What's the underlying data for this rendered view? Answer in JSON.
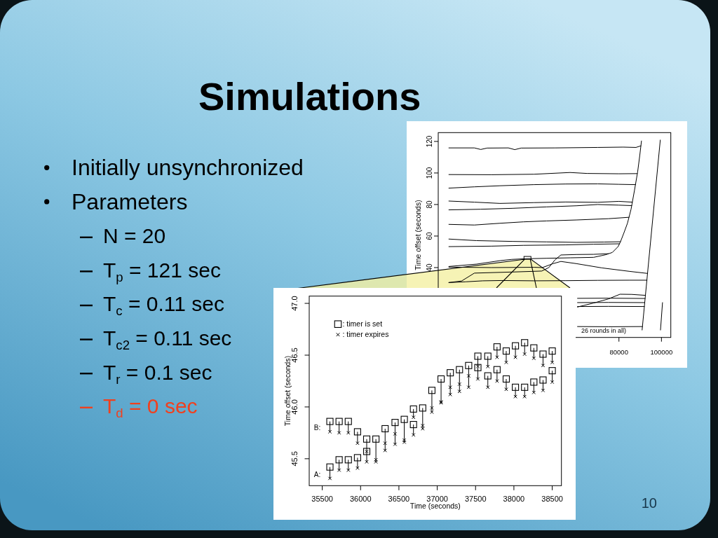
{
  "chart_data": [
    {
      "type": "other",
      "title": "Simulations",
      "annotations": [
        "Initially unsynchronized",
        "Parameters",
        "N = 20",
        "T$_{p}$ = 121 sec",
        "T$_{c}$ = 0.11 sec",
        "T$_{c2}$ = 0.11 sec",
        "T$_{r}$ = 0.1 sec",
        "T$_{d}$ = 0 sec",
        "10"
      ],
      "colors": [
        "#000000",
        "#000000",
        "#000000",
        "#000000",
        "#000000",
        "#000000",
        "#000000",
        "#f0401e",
        "#17364a"
      ]
    },
    {
      "type": "line",
      "ylabel": "Time offset (seconds)",
      "xlim": [
        -5000,
        104400
      ],
      "ylim": [
        -4.3,
        125.6
      ],
      "xticks": [
        80000,
        100000
      ],
      "yticks": [
        40,
        60,
        80,
        100,
        120
      ],
      "annotations": [
        "26 rounds in all)"
      ],
      "series": [
        {
          "color": "#000000",
          "x": [
            0,
            12000,
            15000,
            18000,
            28000,
            31000,
            34000,
            50000,
            70000,
            82000,
            88000,
            90300
          ],
          "values": [
            115.9,
            115.9,
            114.9,
            115.8,
            115.9,
            114.8,
            115.8,
            115.9,
            116.2,
            116.4,
            116.2,
            117.2
          ]
        },
        {
          "color": "#000000",
          "x": [
            0,
            20000,
            40000,
            57000,
            65000,
            80000,
            88600
          ],
          "values": [
            99.0,
            98.9,
            99.2,
            100.3,
            99.7,
            99.5,
            99.6
          ]
        },
        {
          "color": "#000000",
          "x": [
            0,
            12000,
            24000,
            40000,
            55000,
            70000,
            80000,
            87800
          ],
          "values": [
            90.4,
            91.2,
            91.9,
            92.6,
            93.0,
            93.1,
            92.8,
            92.6
          ]
        },
        {
          "color": "#000000",
          "x": [
            0,
            12000,
            24000,
            40000,
            55000,
            70000,
            80000,
            86300
          ],
          "values": [
            82.2,
            81.5,
            80.7,
            81.2,
            81.6,
            81.4,
            82.0,
            81.5
          ]
        },
        {
          "color": "#000000",
          "x": [
            0,
            15000,
            30000,
            46000,
            60000,
            70000,
            80000,
            86000
          ],
          "values": [
            76.6,
            77.0,
            77.6,
            78.5,
            79.2,
            80.0,
            79.6,
            79.3
          ]
        },
        {
          "color": "#000000",
          "x": [
            0,
            12000,
            24000,
            35000,
            46000,
            60000,
            75000,
            84700
          ],
          "values": [
            67.4,
            67.0,
            68.1,
            69.0,
            69.6,
            70.2,
            71.0,
            71.9
          ]
        },
        {
          "color": "#000000",
          "x": [
            0,
            13000,
            30000,
            46000,
            60000,
            73000,
            80700
          ],
          "values": [
            58.1,
            57.1,
            56.6,
            56.3,
            56.0,
            56.2,
            56.4
          ]
        },
        {
          "color": "#000000",
          "x": [
            0,
            20000,
            35000,
            55000,
            68000,
            80300
          ],
          "values": [
            53.3,
            53.6,
            54.1,
            54.4,
            54.8,
            55.1
          ]
        },
        {
          "color": "#000000",
          "x": [
            0,
            13100,
            24100,
            29600,
            36200,
            46100,
            57100,
            68100,
            73600,
            76900,
            79600,
            80700,
            82400,
            84000,
            85700,
            87300,
            88800,
            89800,
            90600,
            90750,
            90900,
            99450,
            99500,
            99550,
            100500
          ],
          "values": [
            40.7,
            42.2,
            44.4,
            45.2,
            45.6,
            45.9,
            46.2,
            46.5,
            48.1,
            49.6,
            53.3,
            56.3,
            62.2,
            68.1,
            77.0,
            88.9,
            100.7,
            111.1,
            120.3,
            null,
            0.4,
            120.9,
            null,
            0.4,
            17.8
          ]
        },
        {
          "color": "#000000",
          "x": [
            0,
            6000,
            12000,
            30000,
            43700,
            47000,
            50000,
            52700,
            60000,
            68000,
            75000
          ],
          "values": [
            30.5,
            31.5,
            36.5,
            37.2,
            37.8,
            40.0,
            45.0,
            48.0,
            48.3,
            48.4,
            48.8
          ]
        },
        {
          "color": "#000000",
          "x": [
            0,
            20000,
            40000,
            44000,
            49000,
            52700,
            60000,
            72000,
            85000,
            93400
          ],
          "values": [
            40.3,
            40.0,
            40.2,
            40.0,
            42.5,
            43.9,
            42.5,
            39.8,
            37.6,
            36.3
          ]
        },
        {
          "color": "#000000",
          "x": [
            0,
            8000,
            16000,
            25000,
            40000,
            55000,
            70000,
            85000,
            93200
          ],
          "values": [
            30.5,
            31.0,
            31.6,
            31.8,
            31.6,
            31.7,
            31.9,
            32.0,
            32.0
          ]
        },
        {
          "color": "#000000",
          "x": [
            60500,
            68000,
            75000,
            80500,
            86000,
            92500
          ],
          "values": [
            15.0,
            17.5,
            20.1,
            23.1,
            23.0,
            22.4
          ]
        },
        {
          "color": "#000000",
          "x": [
            60500,
            75000,
            92300
          ],
          "values": [
            20.5,
            20.6,
            20.4
          ]
        },
        {
          "color": "#000000",
          "x": [
            60500,
            75000,
            92100
          ],
          "values": [
            17.8,
            17.9,
            17.8
          ]
        },
        {
          "color": "#000000",
          "x": [
            60500,
            75000,
            91950
          ],
          "values": [
            15.3,
            15.4,
            15.3
          ]
        },
        {
          "color": "#000000",
          "x": [
            60500,
            75000,
            91100
          ],
          "values": [
            2.6,
            2.5,
            2.6
          ]
        }
      ]
    },
    {
      "type": "scatter",
      "xlabel": "Time (seconds)",
      "ylabel": "Time offset (seconds)",
      "xlim": [
        35330,
        38620
      ],
      "ylim": [
        45.24,
        47.07
      ],
      "xticks": [
        35500,
        36000,
        36500,
        37000,
        37500,
        38000,
        38500
      ],
      "yticks": [
        45.5,
        {
          "value": 46,
          "label": "46.0"
        },
        46.5,
        {
          "value": 47,
          "label": "47.0"
        }
      ],
      "legend": "top left",
      "annotations": [
        "B:",
        "A:"
      ],
      "series": [
        {
          "name": ": timer is set",
          "marker": "square",
          "color": "#000000",
          "x": [
            35600,
            35600,
            35720,
            35720,
            35840,
            35840,
            35960,
            35960,
            36080,
            36080,
            36200,
            36320,
            36450,
            36570,
            36690,
            36690,
            36810,
            36930,
            37050,
            37170,
            37290,
            37410,
            37530,
            37530,
            37660,
            37660,
            37780,
            37780,
            37900,
            37900,
            38020,
            38020,
            38140,
            38140,
            38260,
            38260,
            38380,
            38380,
            38500,
            38500
          ],
          "values": [
            45.86,
            45.42,
            45.86,
            45.49,
            45.86,
            45.49,
            45.76,
            45.51,
            45.69,
            45.57,
            45.69,
            45.79,
            45.85,
            45.88,
            45.98,
            45.83,
            45.99,
            46.16,
            46.27,
            46.33,
            46.36,
            46.4,
            46.49,
            46.38,
            46.49,
            46.3,
            46.58,
            46.36,
            46.54,
            46.27,
            46.59,
            46.19,
            46.62,
            46.19,
            46.57,
            46.24,
            46.51,
            46.26,
            46.54,
            46.35
          ],
          "errors": [
            [
              45.76,
              45.86
            ],
            [
              45.31,
              45.42
            ],
            [
              45.75,
              45.86
            ],
            [
              45.39,
              45.49
            ],
            [
              45.75,
              45.86
            ],
            [
              45.39,
              45.49
            ],
            [
              45.65,
              45.76
            ],
            [
              45.41,
              45.51
            ],
            [
              45.57,
              45.69
            ],
            [
              45.47,
              45.57
            ],
            [
              45.47,
              45.69
            ],
            [
              45.58,
              45.79
            ],
            [
              45.64,
              45.85
            ],
            [
              45.66,
              45.88
            ],
            [
              45.9,
              45.98
            ],
            [
              45.73,
              45.83
            ],
            [
              45.79,
              45.99
            ],
            [
              45.95,
              46.16
            ],
            [
              46.04,
              46.27
            ],
            [
              46.12,
              46.33
            ],
            [
              46.15,
              46.36
            ],
            [
              46.19,
              46.4
            ],
            [
              46.39,
              46.49
            ],
            [
              46.27,
              46.38
            ],
            [
              46.39,
              46.49
            ],
            [
              46.19,
              46.3
            ],
            [
              46.48,
              46.58
            ],
            [
              46.25,
              46.36
            ],
            [
              46.43,
              46.54
            ],
            [
              46.17,
              46.27
            ],
            [
              46.48,
              46.59
            ],
            [
              46.1,
              46.19
            ],
            [
              46.51,
              46.62
            ],
            [
              46.1,
              46.19
            ],
            [
              46.47,
              46.57
            ],
            [
              46.14,
              46.24
            ],
            [
              46.4,
              46.51
            ],
            [
              46.16,
              46.26
            ],
            [
              46.43,
              46.54
            ],
            [
              46.24,
              46.35
            ]
          ]
        },
        {
          "name": ": timer expires",
          "marker": "cross",
          "color": "#000000",
          "x": [
            35600,
            35600,
            35720,
            35720,
            35840,
            35840,
            35960,
            35960,
            36080,
            36080,
            36200,
            36200,
            36320,
            36320,
            36450,
            36450,
            36570,
            36570,
            36690,
            36690,
            36810,
            36810,
            36930,
            36930,
            37050,
            37050,
            37170,
            37170,
            37290,
            37290,
            37410,
            37410,
            37530,
            37530,
            37660,
            37660,
            37780,
            37780,
            37900,
            37900,
            38020,
            38020,
            38140,
            38140,
            38260,
            38260,
            38380,
            38380,
            38500,
            38500
          ],
          "values": [
            45.76,
            45.31,
            45.75,
            45.39,
            45.75,
            45.39,
            45.65,
            45.41,
            45.57,
            45.47,
            45.49,
            45.47,
            45.65,
            45.58,
            45.74,
            45.64,
            45.68,
            45.66,
            45.9,
            45.73,
            45.82,
            45.79,
            45.99,
            45.95,
            46.05,
            46.04,
            46.19,
            46.12,
            46.22,
            46.15,
            46.3,
            46.19,
            46.39,
            46.27,
            46.39,
            46.19,
            46.48,
            46.25,
            46.43,
            46.17,
            46.48,
            46.1,
            46.51,
            46.1,
            46.47,
            46.14,
            46.4,
            46.16,
            46.43,
            46.24
          ]
        }
      ]
    }
  ]
}
